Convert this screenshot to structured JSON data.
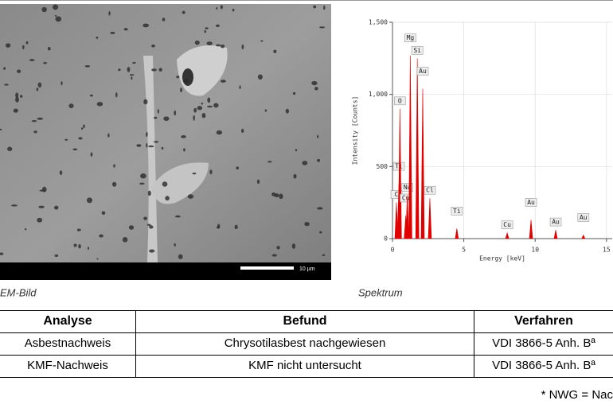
{
  "sem_image": {
    "caption": "EM-Bild",
    "scale_bar": "10 µm"
  },
  "spectrum": {
    "type": "spectrum",
    "caption": "Spektrum",
    "x_label": "Energy [keV]",
    "y_label": "Intensity [Counts]",
    "xlim": [
      0,
      15.4
    ],
    "ylim": [
      0,
      1500
    ],
    "xticks": [
      0,
      5,
      10,
      15
    ],
    "yticks": [
      0,
      500,
      {
        "value": 1000,
        "label": "1,000"
      },
      {
        "value": 1500,
        "label": "1,500"
      }
    ],
    "grid": true,
    "color": "#e00000",
    "peaks": [
      {
        "label": "C",
        "energy": 0.28,
        "counts": 250
      },
      {
        "label": "Ti",
        "energy": 0.45,
        "counts": 380
      },
      {
        "label": "O",
        "energy": 0.52,
        "counts": 900
      },
      {
        "label": "Cu",
        "energy": 0.93,
        "counts": 160
      },
      {
        "label": "Na",
        "energy": 1.04,
        "counts": 300
      },
      {
        "label": "Mg",
        "energy": 1.25,
        "counts": 1270
      },
      {
        "label": "Si",
        "energy": 1.74,
        "counts": 1250
      },
      {
        "label": "Au",
        "energy": 2.12,
        "counts": 1040
      },
      {
        "label": "Cl",
        "energy": 2.62,
        "counts": 280
      },
      {
        "label": "Ti",
        "energy": 4.51,
        "counts": 70
      },
      {
        "label": "Cu",
        "energy": 8.04,
        "counts": 40
      },
      {
        "label": "Au",
        "energy": 9.71,
        "counts": 130
      },
      {
        "label": "Au",
        "energy": 11.44,
        "counts": 60
      },
      {
        "label": "Au",
        "energy": 13.38,
        "counts": 25
      }
    ]
  },
  "table": {
    "header": [
      "Analyse",
      "Befund",
      "Verfahren"
    ],
    "rows": [
      [
        "Asbestnachweis",
        "Chrysotilasbest nachgewiesen",
        "VDI 3866-5 Anh. Bª"
      ],
      [
        "KMF-Nachweis",
        "KMF nicht untersucht",
        "VDI 3866-5 Anh. Bª"
      ]
    ]
  },
  "footnote": "* NWG = Nac"
}
